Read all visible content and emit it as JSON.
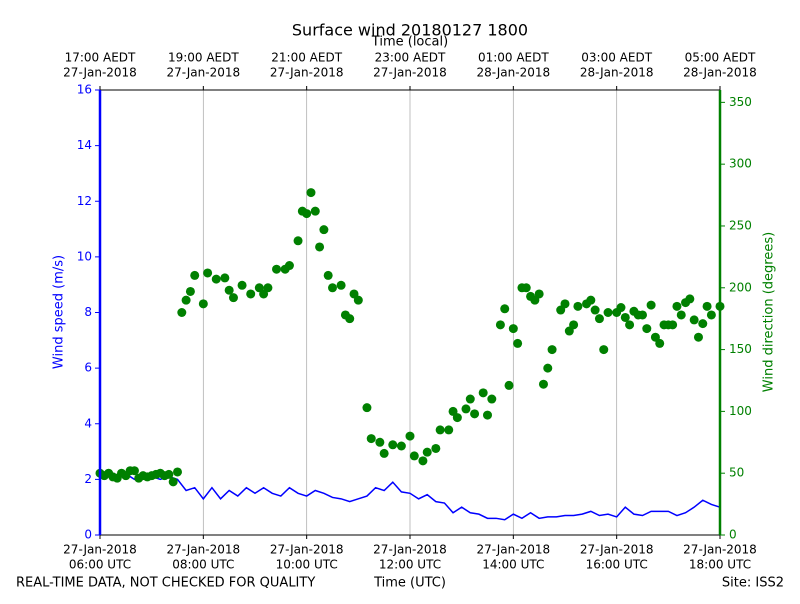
{
  "chart_data": {
    "type": "line",
    "title": "Surface wind 20180127 1800",
    "x2label": "Time (local)",
    "xlabel": "Time (UTC)",
    "ylabel": "Wind speed (m/s)",
    "y2label": "Wind direction (degrees)",
    "footer_left": "REAL-TIME DATA, NOT CHECKED FOR QUALITY",
    "footer_right": "Site: ISS2",
    "xlim": [
      360,
      1080
    ],
    "ylim": [
      0,
      16
    ],
    "y2lim": [
      0,
      360
    ],
    "grid": true,
    "xticks": [
      {
        "value": 360,
        "label": [
          "27-Jan-2018",
          "06:00 UTC"
        ]
      },
      {
        "value": 480,
        "label": [
          "27-Jan-2018",
          "08:00 UTC"
        ]
      },
      {
        "value": 600,
        "label": [
          "27-Jan-2018",
          "10:00 UTC"
        ]
      },
      {
        "value": 720,
        "label": [
          "27-Jan-2018",
          "12:00 UTC"
        ]
      },
      {
        "value": 840,
        "label": [
          "27-Jan-2018",
          "14:00 UTC"
        ]
      },
      {
        "value": 960,
        "label": [
          "27-Jan-2018",
          "16:00 UTC"
        ]
      },
      {
        "value": 1080,
        "label": [
          "27-Jan-2018",
          "18:00 UTC"
        ]
      }
    ],
    "x2ticks": [
      {
        "value": 360,
        "label": [
          "17:00 AEDT",
          "27-Jan-2018"
        ]
      },
      {
        "value": 480,
        "label": [
          "19:00 AEDT",
          "27-Jan-2018"
        ]
      },
      {
        "value": 600,
        "label": [
          "21:00 AEDT",
          "27-Jan-2018"
        ]
      },
      {
        "value": 720,
        "label": [
          "23:00 AEDT",
          "27-Jan-2018"
        ]
      },
      {
        "value": 840,
        "label": [
          "01:00 AEDT",
          "28-Jan-2018"
        ]
      },
      {
        "value": 960,
        "label": [
          "03:00 AEDT",
          "28-Jan-2018"
        ]
      },
      {
        "value": 1080,
        "label": [
          "05:00 AEDT",
          "28-Jan-2018"
        ]
      }
    ],
    "yticks": [
      0,
      2,
      4,
      6,
      8,
      10,
      12,
      14,
      16
    ],
    "y2ticks": [
      0,
      50,
      100,
      150,
      200,
      250,
      300,
      350
    ],
    "series": [
      {
        "name": "Wind speed",
        "type": "line",
        "axis": "y",
        "color": "#0000ff",
        "x": [
          360,
          370,
          380,
          390,
          400,
          410,
          420,
          430,
          440,
          450,
          460,
          470,
          480,
          490,
          500,
          510,
          520,
          530,
          540,
          550,
          560,
          570,
          580,
          590,
          600,
          610,
          620,
          630,
          640,
          650,
          660,
          670,
          680,
          690,
          700,
          710,
          720,
          730,
          740,
          750,
          760,
          770,
          780,
          790,
          800,
          810,
          820,
          830,
          840,
          850,
          860,
          870,
          880,
          890,
          900,
          910,
          920,
          930,
          940,
          950,
          960,
          970,
          980,
          990,
          1000,
          1010,
          1020,
          1030,
          1040,
          1050,
          1060,
          1070,
          1080
        ],
        "values": [
          2.1,
          2.2,
          2.1,
          2.2,
          2.0,
          2.2,
          2.1,
          2.0,
          2.1,
          2.0,
          1.6,
          1.7,
          1.3,
          1.7,
          1.3,
          1.6,
          1.4,
          1.7,
          1.5,
          1.7,
          1.5,
          1.4,
          1.7,
          1.5,
          1.4,
          1.6,
          1.5,
          1.35,
          1.3,
          1.2,
          1.3,
          1.4,
          1.7,
          1.6,
          1.9,
          1.55,
          1.5,
          1.3,
          1.45,
          1.2,
          1.15,
          0.8,
          1.0,
          0.8,
          0.75,
          0.6,
          0.6,
          0.55,
          0.75,
          0.6,
          0.8,
          0.6,
          0.65,
          0.65,
          0.7,
          0.7,
          0.75,
          0.85,
          0.7,
          0.75,
          0.65,
          1.0,
          0.75,
          0.7,
          0.85,
          0.85,
          0.85,
          0.7,
          0.8,
          1.0,
          1.25,
          1.1,
          1.0
        ]
      },
      {
        "name": "Wind direction",
        "type": "scatter",
        "axis": "y2",
        "color": "#008000",
        "x": [
          360,
          365,
          370,
          375,
          380,
          385,
          390,
          395,
          400,
          405,
          410,
          415,
          420,
          425,
          430,
          435,
          440,
          445,
          450,
          455,
          460,
          465,
          470,
          480,
          485,
          495,
          505,
          510,
          515,
          525,
          535,
          545,
          550,
          555,
          565,
          575,
          580,
          590,
          595,
          600,
          605,
          610,
          615,
          620,
          625,
          630,
          640,
          645,
          650,
          655,
          660,
          670,
          675,
          685,
          690,
          700,
          710,
          720,
          725,
          735,
          740,
          750,
          755,
          765,
          770,
          775,
          785,
          790,
          795,
          805,
          810,
          815,
          825,
          830,
          835,
          840,
          845,
          850,
          855,
          860,
          865,
          870,
          875,
          880,
          885,
          895,
          900,
          905,
          910,
          915,
          925,
          930,
          935,
          940,
          945,
          950,
          960,
          965,
          970,
          975,
          980,
          985,
          990,
          995,
          1000,
          1005,
          1010,
          1015,
          1020,
          1025,
          1030,
          1035,
          1040,
          1045,
          1050,
          1055,
          1060,
          1065,
          1070,
          1080
        ],
        "values": [
          50,
          48,
          50,
          47,
          46,
          50,
          48,
          52,
          52,
          46,
          48,
          47,
          48,
          49,
          50,
          48,
          49,
          43,
          51,
          180,
          190,
          197,
          210,
          187,
          212,
          207,
          208,
          198,
          192,
          202,
          195,
          200,
          195,
          200,
          215,
          215,
          218,
          238,
          262,
          260,
          277,
          262,
          233,
          247,
          210,
          200,
          202,
          178,
          175,
          195,
          190,
          103,
          78,
          75,
          66,
          73,
          72,
          80,
          64,
          60,
          67,
          70,
          85,
          85,
          100,
          95,
          102,
          110,
          98,
          115,
          97,
          110,
          170,
          183,
          121,
          167,
          155,
          200,
          200,
          193,
          190,
          195,
          122,
          135,
          150,
          182,
          187,
          165,
          170,
          185,
          187,
          190,
          182,
          175,
          150,
          180,
          180,
          184,
          176,
          170,
          181,
          178,
          178,
          167,
          186,
          160,
          155,
          170,
          170,
          170,
          185,
          178,
          188,
          191,
          174,
          160,
          171,
          185,
          178,
          185
        ]
      }
    ]
  }
}
